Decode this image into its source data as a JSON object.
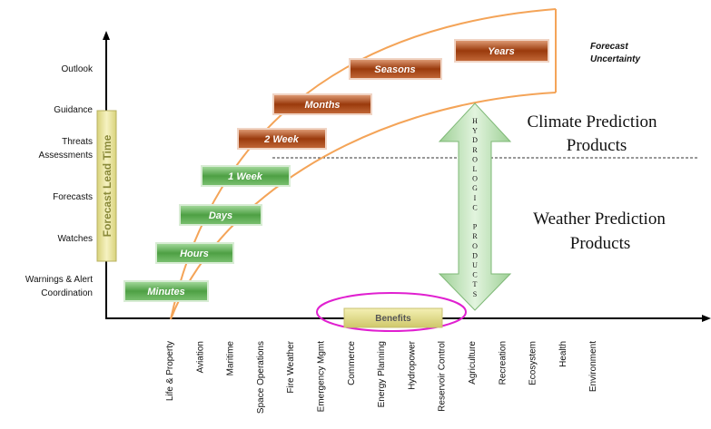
{
  "y_axis_labels": [
    "Outlook",
    "Guidance",
    "Threats",
    "Assessments",
    "Forecasts",
    "Watches",
    "Warnings & Alert",
    "Coordination"
  ],
  "lead_time_label": "Forecast Lead Time",
  "time_scales": {
    "weather": [
      "Minutes",
      "Hours",
      "Days",
      "1 Week"
    ],
    "climate": [
      "2 Week",
      "Months",
      "Seasons",
      "Years"
    ]
  },
  "forecast_uncertainty": [
    "Forecast",
    "Uncertainty"
  ],
  "climate_products": [
    "Climate Prediction",
    "Products"
  ],
  "weather_products": [
    "Weather Prediction",
    "Products"
  ],
  "hydrologic_products": [
    "H",
    "Y",
    "D",
    "R",
    "O",
    "L",
    "O",
    "G",
    "I",
    "C",
    "",
    "P",
    "R",
    "O",
    "D",
    "U",
    "C",
    "T",
    "S"
  ],
  "benefits_label": "Benefits",
  "sectors": [
    "Life & Property",
    "Aviation",
    "Maritime",
    "Space Operations",
    "Fire Weather",
    "Emergency Mgmt",
    "Commerce",
    "Energy Planning",
    "Hydropower",
    "Reservoir Control",
    "Agriculture",
    "Recreation",
    "Ecosystem",
    "Health",
    "Environment"
  ],
  "colors": {
    "weather_box": "#5aa850",
    "climate_box": "#a83e10",
    "curve": "#f4a458",
    "lead_bar": "#e4df96",
    "benefit_ellipse": "#e020d0",
    "hydro_arrow": "#b6e0b0"
  }
}
